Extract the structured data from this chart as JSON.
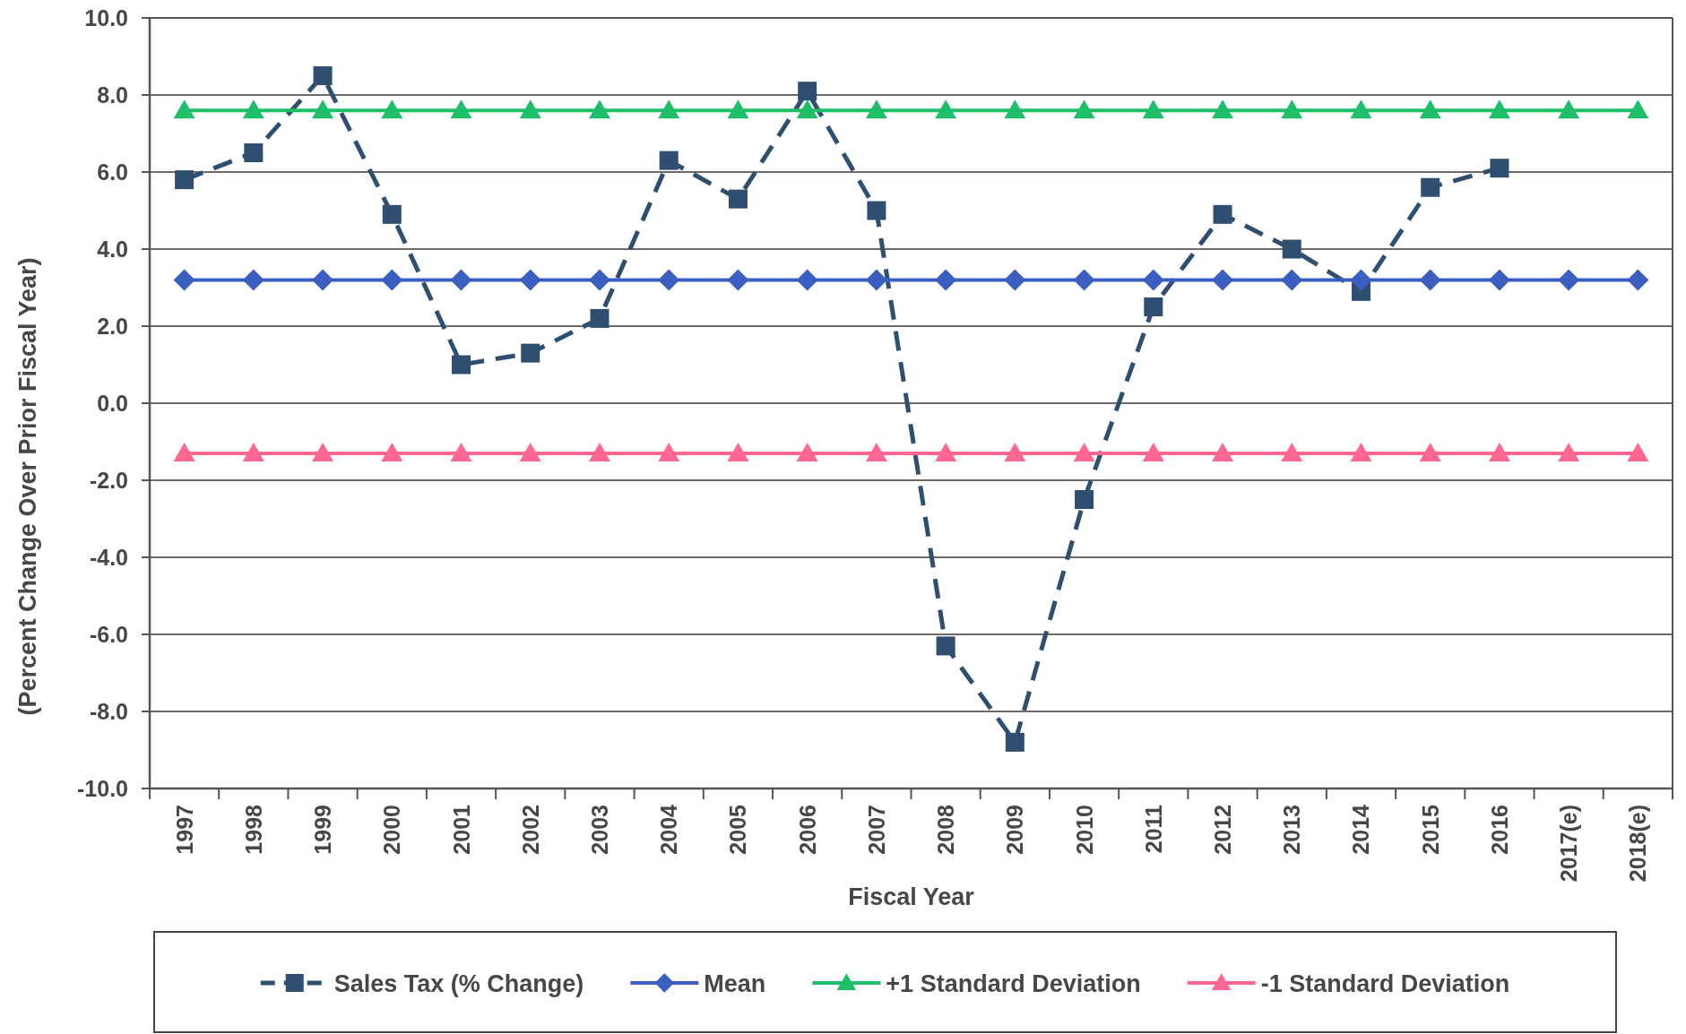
{
  "chart_data": {
    "type": "line",
    "xlabel": "Fiscal Year",
    "ylabel": "(Percent Change Over Prior Fiscal Year)",
    "categories": [
      "1997",
      "1998",
      "1999",
      "2000",
      "2001",
      "2002",
      "2003",
      "2004",
      "2005",
      "2006",
      "2007",
      "2008",
      "2009",
      "2010",
      "2011",
      "2012",
      "2013",
      "2014",
      "2015",
      "2016",
      "2017(e)",
      "2018(e)"
    ],
    "series": [
      {
        "name": "Sales Tax (% Change)",
        "color": "#2e4f70",
        "marker": "square",
        "line_style": "dashed",
        "values": [
          5.8,
          6.5,
          8.5,
          4.9,
          1.0,
          1.3,
          2.2,
          6.3,
          5.3,
          8.1,
          5.0,
          -6.3,
          -8.8,
          -2.5,
          2.5,
          4.9,
          4.0,
          2.9,
          5.6,
          6.1,
          null,
          null
        ]
      },
      {
        "name": "Mean",
        "color": "#3b5fc0",
        "marker": "diamond",
        "line_style": "solid",
        "values": [
          3.2,
          3.2,
          3.2,
          3.2,
          3.2,
          3.2,
          3.2,
          3.2,
          3.2,
          3.2,
          3.2,
          3.2,
          3.2,
          3.2,
          3.2,
          3.2,
          3.2,
          3.2,
          3.2,
          3.2,
          3.2,
          3.2
        ]
      },
      {
        "name": "+1 Standard Deviation",
        "color": "#1fbf6a",
        "marker": "triangle",
        "line_style": "solid",
        "values": [
          7.6,
          7.6,
          7.6,
          7.6,
          7.6,
          7.6,
          7.6,
          7.6,
          7.6,
          7.6,
          7.6,
          7.6,
          7.6,
          7.6,
          7.6,
          7.6,
          7.6,
          7.6,
          7.6,
          7.6,
          7.6,
          7.6
        ]
      },
      {
        "name": "-1 Standard Deviation",
        "color": "#ff6690",
        "marker": "triangle",
        "line_style": "solid",
        "values": [
          -1.3,
          -1.3,
          -1.3,
          -1.3,
          -1.3,
          -1.3,
          -1.3,
          -1.3,
          -1.3,
          -1.3,
          -1.3,
          -1.3,
          -1.3,
          -1.3,
          -1.3,
          -1.3,
          -1.3,
          -1.3,
          -1.3,
          -1.3,
          -1.3,
          -1.3
        ]
      }
    ],
    "ylim": [
      -10,
      10
    ],
    "yticks": [
      {
        "value": -10,
        "label": "-10.0"
      },
      {
        "value": -8,
        "label": "-8.0"
      },
      {
        "value": -6,
        "label": "-6.0"
      },
      {
        "value": -4,
        "label": "-4.0"
      },
      {
        "value": -2,
        "label": "-2.0"
      },
      {
        "value": 0,
        "label": "0.0"
      },
      {
        "value": 2,
        "label": "2.0"
      },
      {
        "value": 4,
        "label": "4.0"
      },
      {
        "value": 6,
        "label": "6.0"
      },
      {
        "value": 8,
        "label": "8.0"
      },
      {
        "value": 10,
        "label": "10.0"
      }
    ],
    "grid": "y",
    "legend": "bottom"
  }
}
